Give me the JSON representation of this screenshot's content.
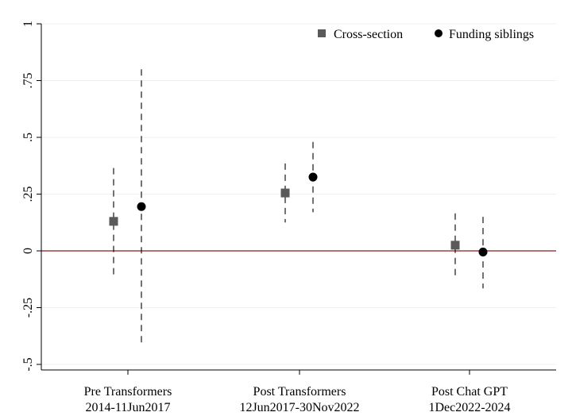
{
  "chart_data": {
    "type": "scatter",
    "title": "",
    "xlabel": "",
    "ylabel": "",
    "ylim": [
      -0.55,
      1.0
    ],
    "y_ticks": [
      -0.5,
      -0.25,
      0,
      0.25,
      0.5,
      0.75,
      1
    ],
    "y_tick_labels": [
      "-.5",
      "-.25",
      "0",
      ".25",
      ".5",
      ".75",
      "1"
    ],
    "categories": [
      {
        "line1": "Pre Transformers",
        "line2": "2014-11Jun2017"
      },
      {
        "line1": "Post Transformers",
        "line2": "12Jun2017-30Nov2022"
      },
      {
        "line1": "Post Chat GPT",
        "line2": "1Dec2022-2024"
      }
    ],
    "grid": true,
    "legend_position": "top-right",
    "reference_line": {
      "y": 0,
      "color": "#8b1a1a"
    },
    "series": [
      {
        "name": "Cross-section",
        "marker": "square",
        "color": "#5a5a5a",
        "points": [
          {
            "estimate": 0.13,
            "ci_low": -0.115,
            "ci_high": 0.365
          },
          {
            "estimate": 0.255,
            "ci_low": 0.125,
            "ci_high": 0.385
          },
          {
            "estimate": 0.025,
            "ci_low": -0.115,
            "ci_high": 0.165
          }
        ]
      },
      {
        "name": "Funding siblings",
        "marker": "circle",
        "color": "#000000",
        "points": [
          {
            "estimate": 0.195,
            "ci_low": -0.41,
            "ci_high": 0.8
          },
          {
            "estimate": 0.325,
            "ci_low": 0.17,
            "ci_high": 0.48
          },
          {
            "estimate": -0.005,
            "ci_low": -0.165,
            "ci_high": 0.15
          }
        ]
      }
    ]
  }
}
